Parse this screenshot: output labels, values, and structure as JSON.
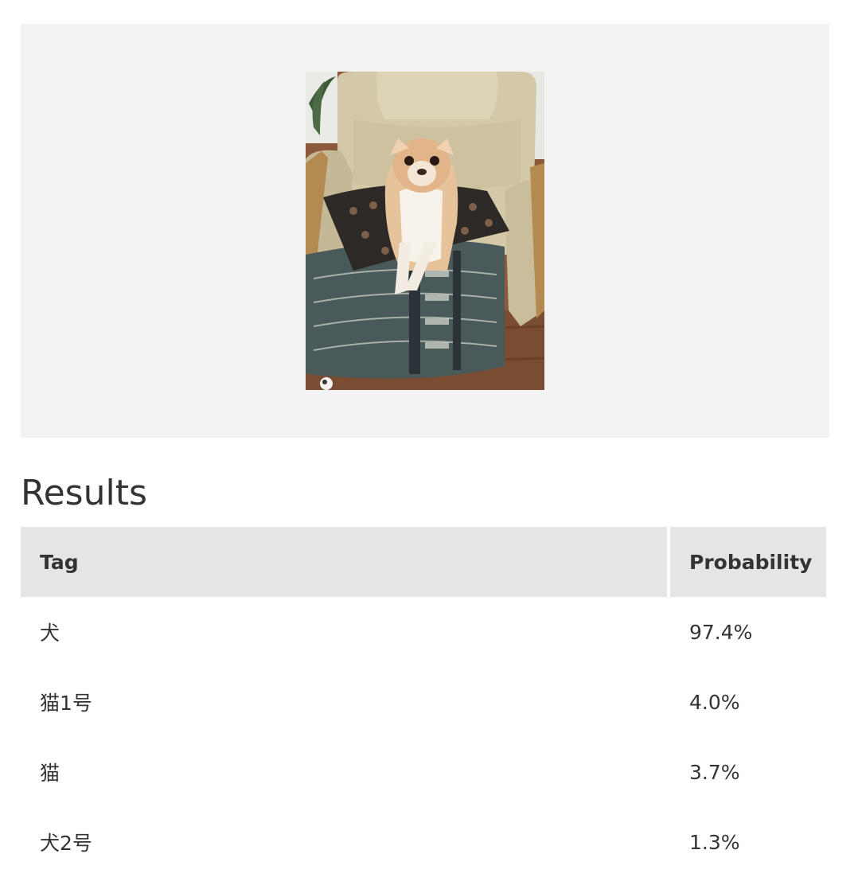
{
  "preview": {
    "image_alt": "Chihuahua sitting on a patterned cushion in a beige armchair"
  },
  "results": {
    "heading": "Results",
    "columns": [
      "Tag",
      "Probability"
    ],
    "rows": [
      {
        "tag": "犬",
        "probability": "97.4%"
      },
      {
        "tag": "猫1号",
        "probability": "4.0%"
      },
      {
        "tag": "猫",
        "probability": "3.7%"
      },
      {
        "tag": "犬2号",
        "probability": "1.3%"
      }
    ]
  }
}
